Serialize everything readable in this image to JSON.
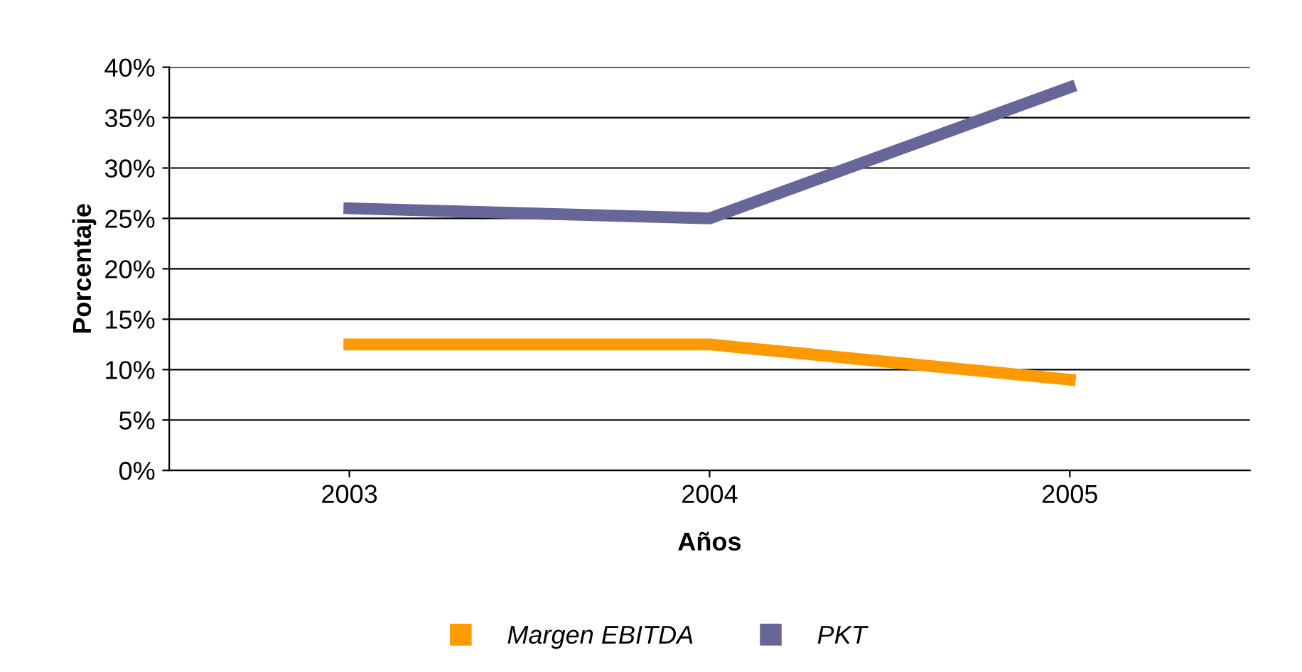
{
  "chart_data": {
    "type": "line",
    "xlabel": "Años",
    "ylabel": "Porcentaje",
    "categories": [
      "2003",
      "2004",
      "2005"
    ],
    "series": [
      {
        "name": "Margen EBITDA",
        "color": "#ff9900",
        "values": [
          12.5,
          12.5,
          9
        ]
      },
      {
        "name": "PKT",
        "color": "#666699",
        "values": [
          26,
          25,
          38
        ]
      }
    ],
    "ylim": [
      0,
      40
    ],
    "yticks": [
      {
        "value": 0,
        "label": "0%"
      },
      {
        "value": 5,
        "label": "5%"
      },
      {
        "value": 10,
        "label": "10%"
      },
      {
        "value": 15,
        "label": "15%"
      },
      {
        "value": 20,
        "label": "20%"
      },
      {
        "value": 25,
        "label": "25%"
      },
      {
        "value": 30,
        "label": "30%"
      },
      {
        "value": 35,
        "label": "35%"
      },
      {
        "value": 40,
        "label": "40%"
      }
    ],
    "grid": "y",
    "legend": "bottom",
    "marker": "none",
    "line_style": "solid"
  }
}
